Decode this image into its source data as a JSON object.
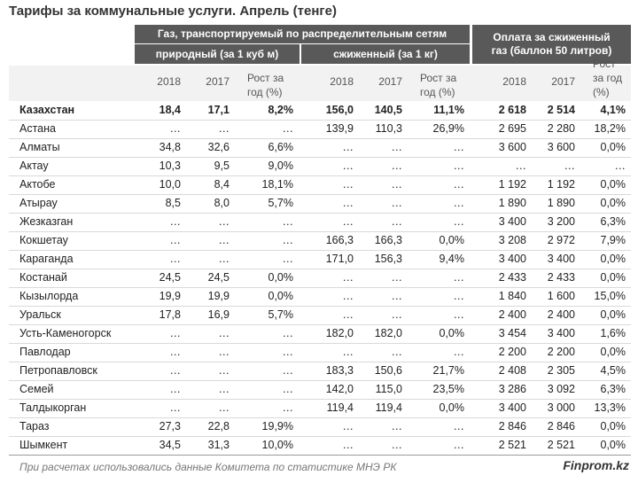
{
  "title": "Тарифы за коммунальные услуги. Апрель (тенге)",
  "table": {
    "group_header": "Газ, транспортируемый по распределительным сетям",
    "subgroups": [
      "природный (за 1 куб м)",
      "сжиженный (за 1 кг)"
    ],
    "group3_header": "Оплата за сжиженный газ (баллон 50 литров)",
    "columns": [
      "2018",
      "2017",
      "Рост за год (%)",
      "2018",
      "2017",
      "Рост за год (%)",
      "2018",
      "2017",
      "Рост за год (%)"
    ],
    "rows": [
      [
        "Казахстан",
        "18,4",
        "17,1",
        "8,2%",
        "156,0",
        "140,5",
        "11,1%",
        "2 618",
        "2 514",
        "4,1%"
      ],
      [
        "Астана",
        "…",
        "…",
        "…",
        "139,9",
        "110,3",
        "26,9%",
        "2 695",
        "2 280",
        "18,2%"
      ],
      [
        "Алматы",
        "34,8",
        "32,6",
        "6,6%",
        "…",
        "…",
        "…",
        "3 600",
        "3 600",
        "0,0%"
      ],
      [
        "Актау",
        "10,3",
        "9,5",
        "9,0%",
        "…",
        "…",
        "…",
        "…",
        "…",
        "…"
      ],
      [
        "Актобе",
        "10,0",
        "8,4",
        "18,1%",
        "…",
        "…",
        "…",
        "1 192",
        "1 192",
        "0,0%"
      ],
      [
        "Атырау",
        "8,5",
        "8,0",
        "5,7%",
        "…",
        "…",
        "…",
        "1 890",
        "1 890",
        "0,0%"
      ],
      [
        "Жезказган",
        "…",
        "…",
        "…",
        "…",
        "…",
        "…",
        "3 400",
        "3 200",
        "6,3%"
      ],
      [
        "Кокшетау",
        "…",
        "…",
        "…",
        "166,3",
        "166,3",
        "0,0%",
        "3 208",
        "2 972",
        "7,9%"
      ],
      [
        "Караганда",
        "…",
        "…",
        "…",
        "171,0",
        "156,3",
        "9,4%",
        "3 400",
        "3 400",
        "0,0%"
      ],
      [
        "Костанай",
        "24,5",
        "24,5",
        "0,0%",
        "…",
        "…",
        "…",
        "2 433",
        "2 433",
        "0,0%"
      ],
      [
        "Кызылорда",
        "19,9",
        "19,9",
        "0,0%",
        "…",
        "…",
        "…",
        "1 840",
        "1 600",
        "15,0%"
      ],
      [
        "Уральск",
        "17,8",
        "16,9",
        "5,7%",
        "…",
        "…",
        "…",
        "2 400",
        "2 400",
        "0,0%"
      ],
      [
        "Усть-Каменогорск",
        "…",
        "…",
        "…",
        "182,0",
        "182,0",
        "0,0%",
        "3 454",
        "3 400",
        "1,6%"
      ],
      [
        "Павлодар",
        "…",
        "…",
        "…",
        "…",
        "…",
        "…",
        "2 200",
        "2 200",
        "0,0%"
      ],
      [
        "Петропавловск",
        "…",
        "…",
        "…",
        "183,3",
        "150,6",
        "21,7%",
        "2 408",
        "2 305",
        "4,5%"
      ],
      [
        "Семей",
        "…",
        "…",
        "…",
        "142,0",
        "115,0",
        "23,5%",
        "3 286",
        "3 092",
        "6,3%"
      ],
      [
        "Талдыкорган",
        "…",
        "…",
        "…",
        "119,4",
        "119,4",
        "0,0%",
        "3 400",
        "3 000",
        "13,3%"
      ],
      [
        "Тараз",
        "27,3",
        "22,8",
        "19,9%",
        "…",
        "…",
        "…",
        "2 846",
        "2 846",
        "0,0%"
      ],
      [
        "Шымкент",
        "34,5",
        "31,3",
        "10,0%",
        "…",
        "…",
        "…",
        "2 521",
        "2 521",
        "0,0%"
      ]
    ]
  },
  "footer": {
    "note": "При расчетах использовались данные Комитета по статистике МНЭ РК",
    "source": "Finprom.kz"
  }
}
